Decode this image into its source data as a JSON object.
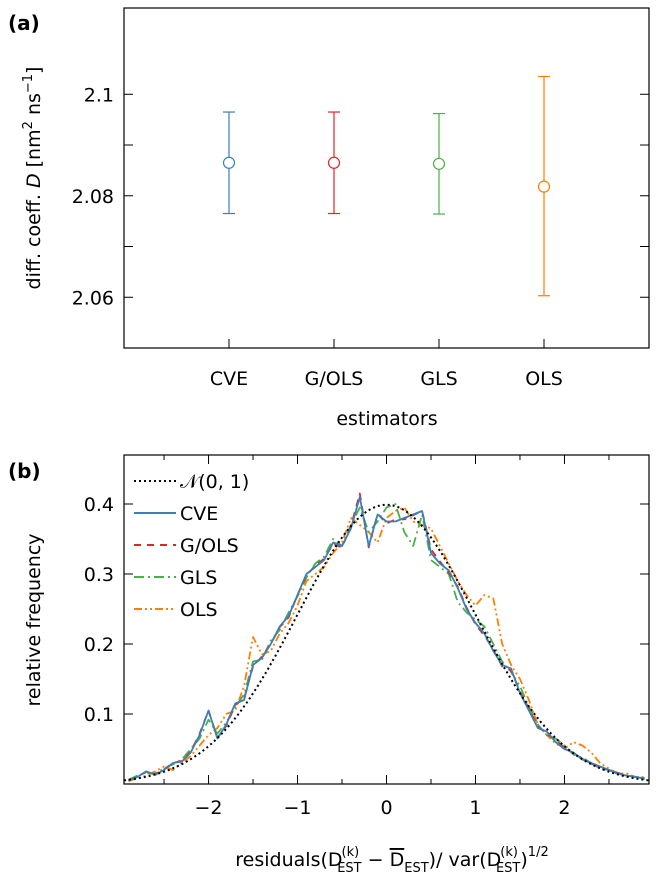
{
  "chart_data": [
    {
      "type": "errorbar",
      "panel_label": "(a)",
      "xlabel": "estimators",
      "ylabel": "diff. coeff. D [nm² ns⁻¹]",
      "ylabel_parts": {
        "a": "diff. coeff. ",
        "b": "D",
        "c": " [nm",
        "d": "2",
        "e": " ns",
        "f": "−1",
        "g": "]"
      },
      "categories": [
        "CVE",
        "G/OLS",
        "GLS",
        "OLS"
      ],
      "ylim": [
        2.05,
        2.117
      ],
      "yticks": [
        2.06,
        2.08,
        2.1
      ],
      "ytick_labels": [
        "2.06",
        "2.08",
        "2.1"
      ],
      "series": [
        {
          "category": "CVE",
          "value": 2.0865,
          "lower": 2.0765,
          "upper": 2.0965,
          "color": "#3b7fb8"
        },
        {
          "category": "G/OLS",
          "value": 2.0865,
          "lower": 2.0765,
          "upper": 2.0965,
          "color": "#e0242a"
        },
        {
          "category": "GLS",
          "value": 2.0863,
          "lower": 2.0764,
          "upper": 2.0962,
          "color": "#4daf4a"
        },
        {
          "category": "OLS",
          "value": 2.0818,
          "lower": 2.0603,
          "upper": 2.1035,
          "color": "#ff7f00"
        }
      ]
    },
    {
      "type": "line",
      "panel_label": "(b)",
      "xlabel": "residuals",
      "xlabel_math": {
        "a": "(D",
        "b": "(k)",
        "c": "EST",
        "d": " − ",
        "e": "D",
        "f": "EST",
        "g": ")/ var(D",
        "h": "(k)",
        "i": "EST",
        "j": ")",
        "k": "1/2"
      },
      "ylabel": "relative frequency",
      "xlim": [
        -2.95,
        2.95
      ],
      "ylim": [
        0,
        0.47
      ],
      "xticks": [
        -2,
        -1,
        0,
        1,
        2
      ],
      "xtick_labels": [
        "−2",
        "−1",
        "0",
        "1",
        "2"
      ],
      "yticks": [
        0.1,
        0.2,
        0.3,
        0.4
      ],
      "ytick_labels": [
        "0.1",
        "0.2",
        "0.3",
        "0.4"
      ],
      "legend_position": "top-left",
      "reference": {
        "name": "𝒩(0, 1)",
        "mean": 0,
        "sd": 1,
        "color": "#000000"
      },
      "series": [
        {
          "name": "CVE",
          "color": "#3b7fb8",
          "x": [
            -2.9,
            -2.8,
            -2.7,
            -2.6,
            -2.5,
            -2.4,
            -2.3,
            -2.2,
            -2.1,
            -2.0,
            -1.9,
            -1.8,
            -1.7,
            -1.6,
            -1.5,
            -1.4,
            -1.3,
            -1.2,
            -1.1,
            -1.0,
            -0.9,
            -0.8,
            -0.7,
            -0.6,
            -0.5,
            -0.4,
            -0.3,
            -0.2,
            -0.1,
            0.0,
            0.1,
            0.2,
            0.3,
            0.4,
            0.5,
            0.6,
            0.7,
            0.8,
            0.9,
            1.0,
            1.1,
            1.2,
            1.3,
            1.4,
            1.5,
            1.6,
            1.7,
            1.8,
            1.9,
            2.0,
            2.1,
            2.2,
            2.3,
            2.4,
            2.5,
            2.6,
            2.7,
            2.8,
            2.9
          ],
          "y": [
            0.005,
            0.01,
            0.018,
            0.013,
            0.02,
            0.03,
            0.032,
            0.045,
            0.07,
            0.105,
            0.065,
            0.085,
            0.115,
            0.12,
            0.17,
            0.18,
            0.2,
            0.225,
            0.24,
            0.27,
            0.3,
            0.31,
            0.32,
            0.345,
            0.34,
            0.365,
            0.41,
            0.34,
            0.385,
            0.375,
            0.375,
            0.38,
            0.385,
            0.39,
            0.33,
            0.315,
            0.305,
            0.28,
            0.25,
            0.23,
            0.215,
            0.19,
            0.17,
            0.165,
            0.13,
            0.105,
            0.08,
            0.075,
            0.06,
            0.05,
            0.045,
            0.035,
            0.03,
            0.025,
            0.02,
            0.015,
            0.012,
            0.01,
            0.008
          ]
        },
        {
          "name": "G/OLS",
          "color": "#e0242a",
          "x": [
            -2.9,
            -2.8,
            -2.7,
            -2.6,
            -2.5,
            -2.4,
            -2.3,
            -2.2,
            -2.1,
            -2.0,
            -1.9,
            -1.8,
            -1.7,
            -1.6,
            -1.5,
            -1.4,
            -1.3,
            -1.2,
            -1.1,
            -1.0,
            -0.9,
            -0.8,
            -0.7,
            -0.6,
            -0.5,
            -0.4,
            -0.3,
            -0.2,
            -0.1,
            0.0,
            0.1,
            0.2,
            0.3,
            0.4,
            0.5,
            0.6,
            0.7,
            0.8,
            0.9,
            1.0,
            1.1,
            1.2,
            1.3,
            1.4,
            1.5,
            1.6,
            1.7,
            1.8,
            1.9,
            2.0,
            2.1,
            2.2,
            2.3,
            2.4,
            2.5,
            2.6,
            2.7,
            2.8,
            2.9
          ],
          "y": [
            0.005,
            0.011,
            0.017,
            0.014,
            0.021,
            0.03,
            0.033,
            0.046,
            0.072,
            0.105,
            0.066,
            0.083,
            0.113,
            0.122,
            0.168,
            0.182,
            0.2,
            0.224,
            0.238,
            0.27,
            0.298,
            0.312,
            0.322,
            0.343,
            0.338,
            0.368,
            0.415,
            0.338,
            0.386,
            0.372,
            0.378,
            0.378,
            0.384,
            0.39,
            0.335,
            0.318,
            0.302,
            0.282,
            0.252,
            0.228,
            0.212,
            0.192,
            0.168,
            0.162,
            0.132,
            0.108,
            0.082,
            0.072,
            0.062,
            0.052,
            0.044,
            0.036,
            0.029,
            0.024,
            0.02,
            0.016,
            0.012,
            0.01,
            0.008
          ]
        },
        {
          "name": "GLS",
          "color": "#4daf4a",
          "x": [
            -2.9,
            -2.8,
            -2.7,
            -2.6,
            -2.5,
            -2.4,
            -2.3,
            -2.2,
            -2.1,
            -2.0,
            -1.9,
            -1.8,
            -1.7,
            -1.6,
            -1.5,
            -1.4,
            -1.3,
            -1.2,
            -1.1,
            -1.0,
            -0.9,
            -0.8,
            -0.7,
            -0.6,
            -0.5,
            -0.4,
            -0.3,
            -0.2,
            -0.1,
            0.0,
            0.1,
            0.2,
            0.3,
            0.4,
            0.5,
            0.6,
            0.7,
            0.8,
            0.9,
            1.0,
            1.1,
            1.2,
            1.3,
            1.4,
            1.5,
            1.6,
            1.7,
            1.8,
            1.9,
            2.0,
            2.1,
            2.2,
            2.3,
            2.4,
            2.5,
            2.6,
            2.7,
            2.8,
            2.9
          ],
          "y": [
            0.006,
            0.012,
            0.016,
            0.015,
            0.022,
            0.028,
            0.035,
            0.05,
            0.065,
            0.092,
            0.072,
            0.088,
            0.11,
            0.128,
            0.175,
            0.178,
            0.205,
            0.22,
            0.245,
            0.268,
            0.295,
            0.315,
            0.325,
            0.35,
            0.34,
            0.37,
            0.395,
            0.36,
            0.375,
            0.395,
            0.4,
            0.36,
            0.34,
            0.385,
            0.32,
            0.31,
            0.3,
            0.26,
            0.245,
            0.235,
            0.225,
            0.2,
            0.175,
            0.16,
            0.14,
            0.11,
            0.085,
            0.07,
            0.065,
            0.055,
            0.042,
            0.038,
            0.03,
            0.022,
            0.02,
            0.014,
            0.012,
            0.01,
            0.007
          ]
        },
        {
          "name": "OLS",
          "color": "#ff7f00",
          "x": [
            -2.9,
            -2.8,
            -2.7,
            -2.6,
            -2.5,
            -2.4,
            -2.3,
            -2.2,
            -2.1,
            -2.0,
            -1.9,
            -1.8,
            -1.7,
            -1.6,
            -1.5,
            -1.4,
            -1.3,
            -1.2,
            -1.1,
            -1.0,
            -0.9,
            -0.8,
            -0.7,
            -0.6,
            -0.5,
            -0.4,
            -0.3,
            -0.2,
            -0.1,
            0.0,
            0.1,
            0.2,
            0.3,
            0.4,
            0.5,
            0.6,
            0.7,
            0.8,
            0.9,
            1.0,
            1.1,
            1.2,
            1.3,
            1.4,
            1.5,
            1.6,
            1.7,
            1.8,
            1.9,
            2.0,
            2.1,
            2.2,
            2.3,
            2.4,
            2.5,
            2.6,
            2.7,
            2.8,
            2.9
          ],
          "y": [
            0.004,
            0.008,
            0.012,
            0.018,
            0.025,
            0.02,
            0.03,
            0.04,
            0.055,
            0.07,
            0.08,
            0.1,
            0.105,
            0.14,
            0.21,
            0.185,
            0.19,
            0.215,
            0.23,
            0.255,
            0.29,
            0.3,
            0.31,
            0.33,
            0.345,
            0.38,
            0.37,
            0.36,
            0.345,
            0.38,
            0.39,
            0.395,
            0.375,
            0.37,
            0.365,
            0.34,
            0.315,
            0.29,
            0.27,
            0.255,
            0.27,
            0.265,
            0.2,
            0.17,
            0.15,
            0.12,
            0.085,
            0.07,
            0.058,
            0.05,
            0.06,
            0.055,
            0.045,
            0.03,
            0.022,
            0.015,
            0.015,
            0.01,
            0.01
          ]
        }
      ]
    }
  ]
}
